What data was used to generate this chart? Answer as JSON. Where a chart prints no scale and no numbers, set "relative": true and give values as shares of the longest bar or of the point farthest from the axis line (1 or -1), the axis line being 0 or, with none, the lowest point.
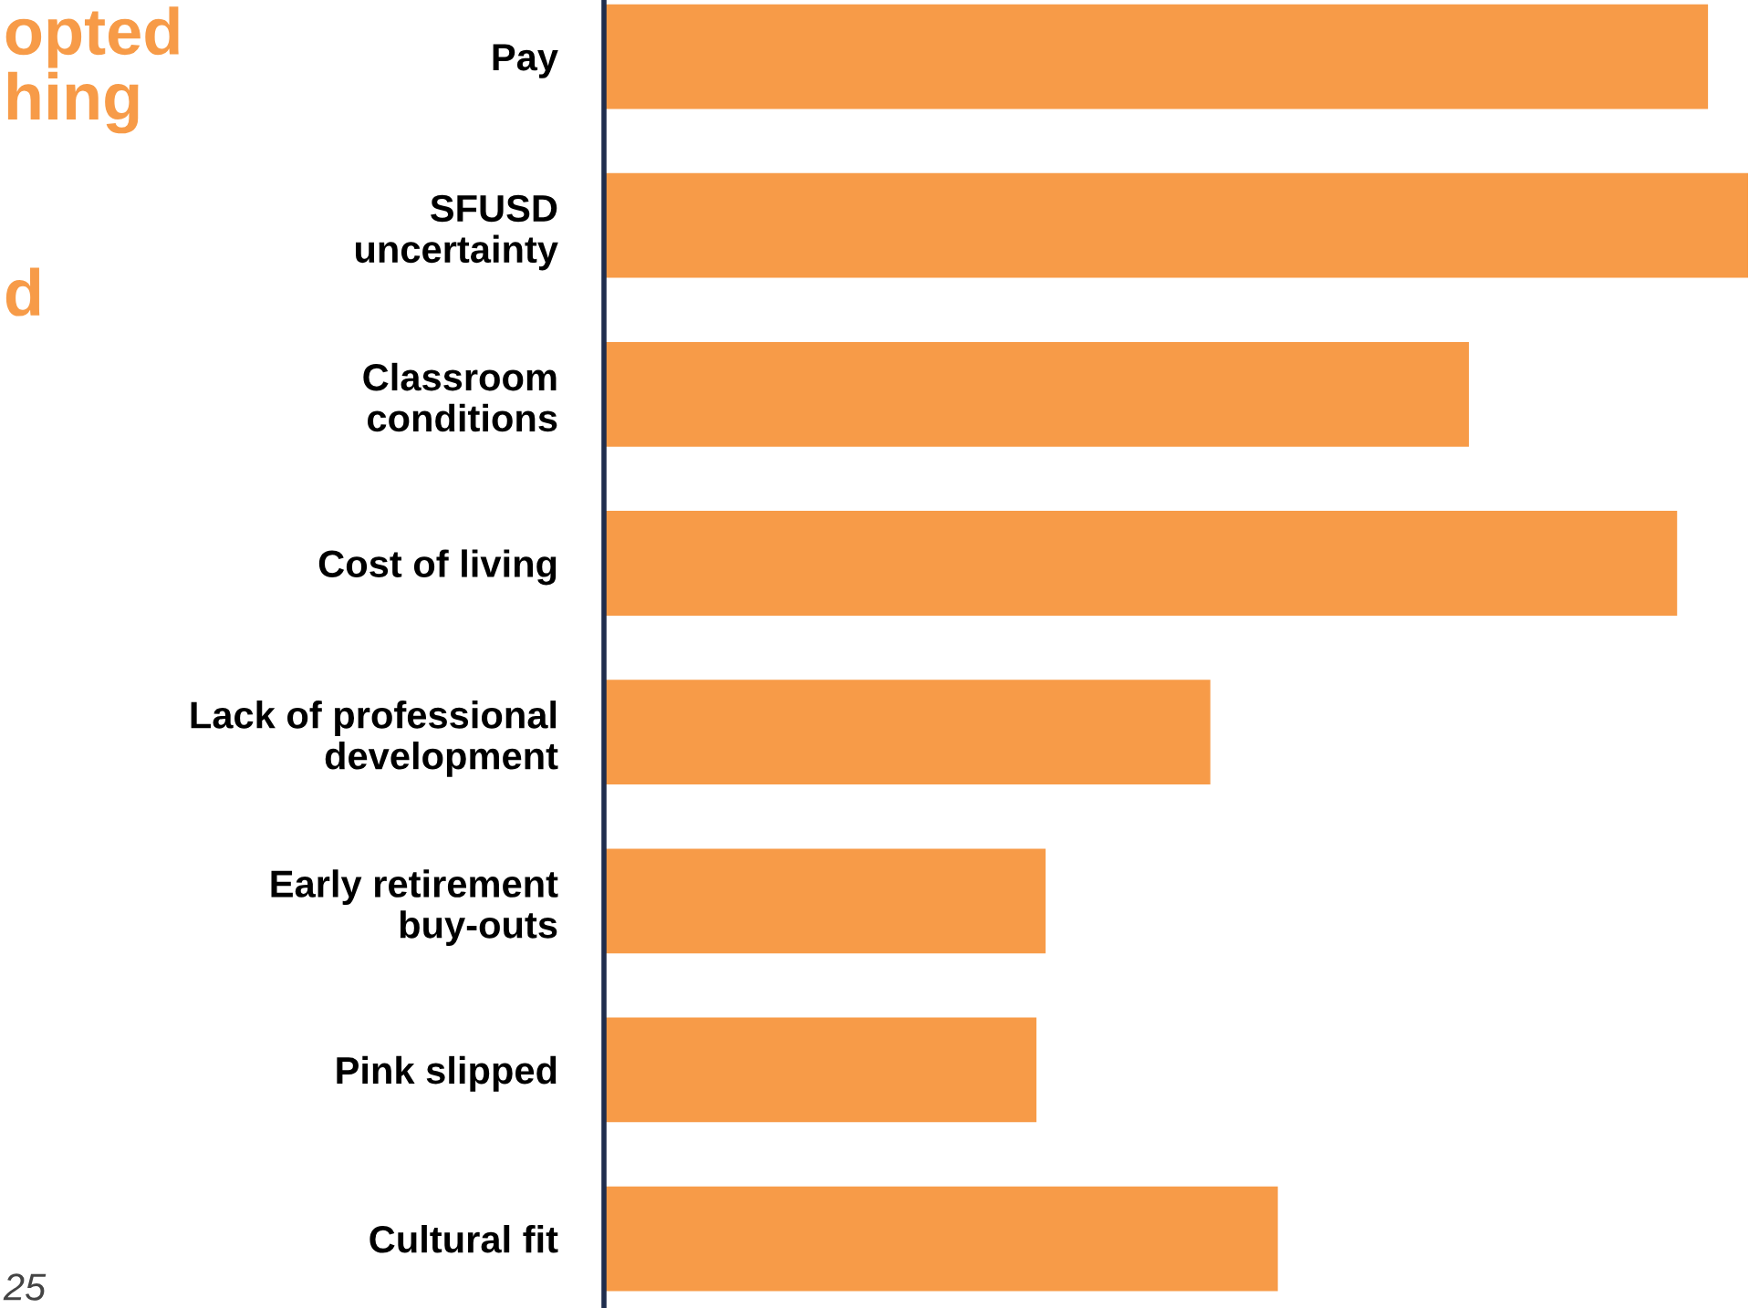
{
  "chart_data": {
    "type": "bar",
    "orientation": "horizontal",
    "relative": true,
    "color": "#f79b48",
    "categories": [
      "Pay",
      "SFUSD\nuncertainty",
      "Classroom\nconditions",
      "Cost of living",
      "Lack of professional\ndevelopment",
      "Early retirement\nbuy-outs",
      "Pink slipped",
      "Cultural fit"
    ],
    "values": [
      0.965,
      1,
      0.756,
      0.938,
      0.53,
      0.386,
      0.378,
      0.589
    ],
    "annotations": [
      "opted\nhing\n\n\nd",
      "25"
    ],
    "grid": false,
    "legend": false
  }
}
